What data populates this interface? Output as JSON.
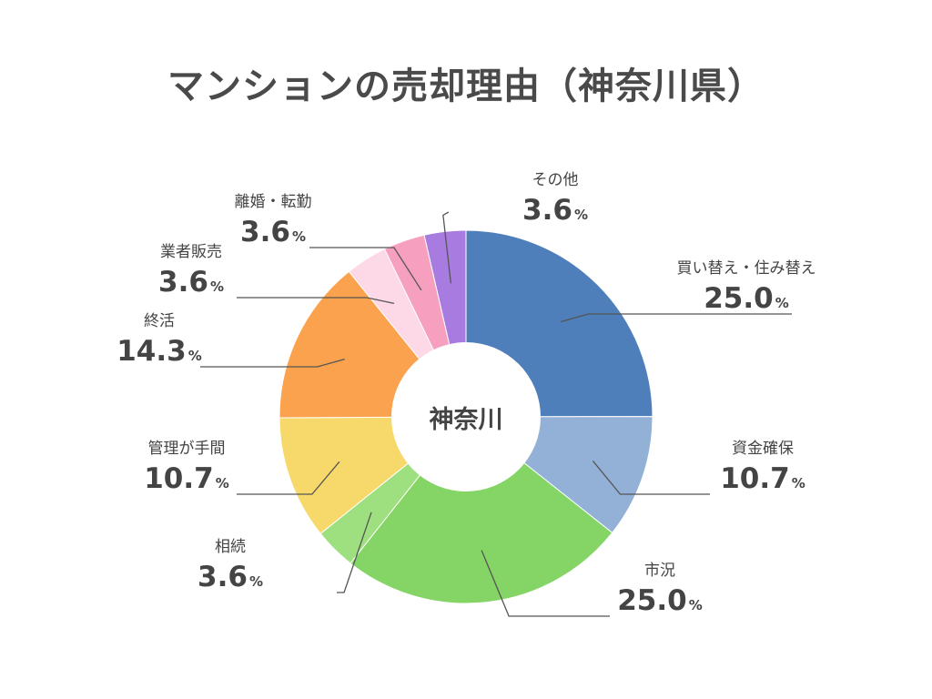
{
  "chart_data": {
    "type": "pie",
    "title": "マンションの売却理由（神奈川県）",
    "center_label": "神奈川",
    "unit": "%",
    "slices": [
      {
        "label": "買い替え・住み替え",
        "value": 25.0,
        "color": "#4f7fba"
      },
      {
        "label": "資金確保",
        "value": 10.7,
        "color": "#93b1d6"
      },
      {
        "label": "市況",
        "value": 25.0,
        "color": "#84d466"
      },
      {
        "label": "相続",
        "value": 3.6,
        "color": "#9ee07f"
      },
      {
        "label": "管理が手間",
        "value": 10.7,
        "color": "#f7d86a"
      },
      {
        "label": "終活",
        "value": 14.3,
        "color": "#fba24f"
      },
      {
        "label": "業者販売",
        "value": 3.6,
        "color": "#fdd8e6"
      },
      {
        "label": "離婚・転勤",
        "value": 3.6,
        "color": "#f69fbf"
      },
      {
        "label": "その他",
        "value": 3.6,
        "color": "#a87be0"
      }
    ]
  }
}
